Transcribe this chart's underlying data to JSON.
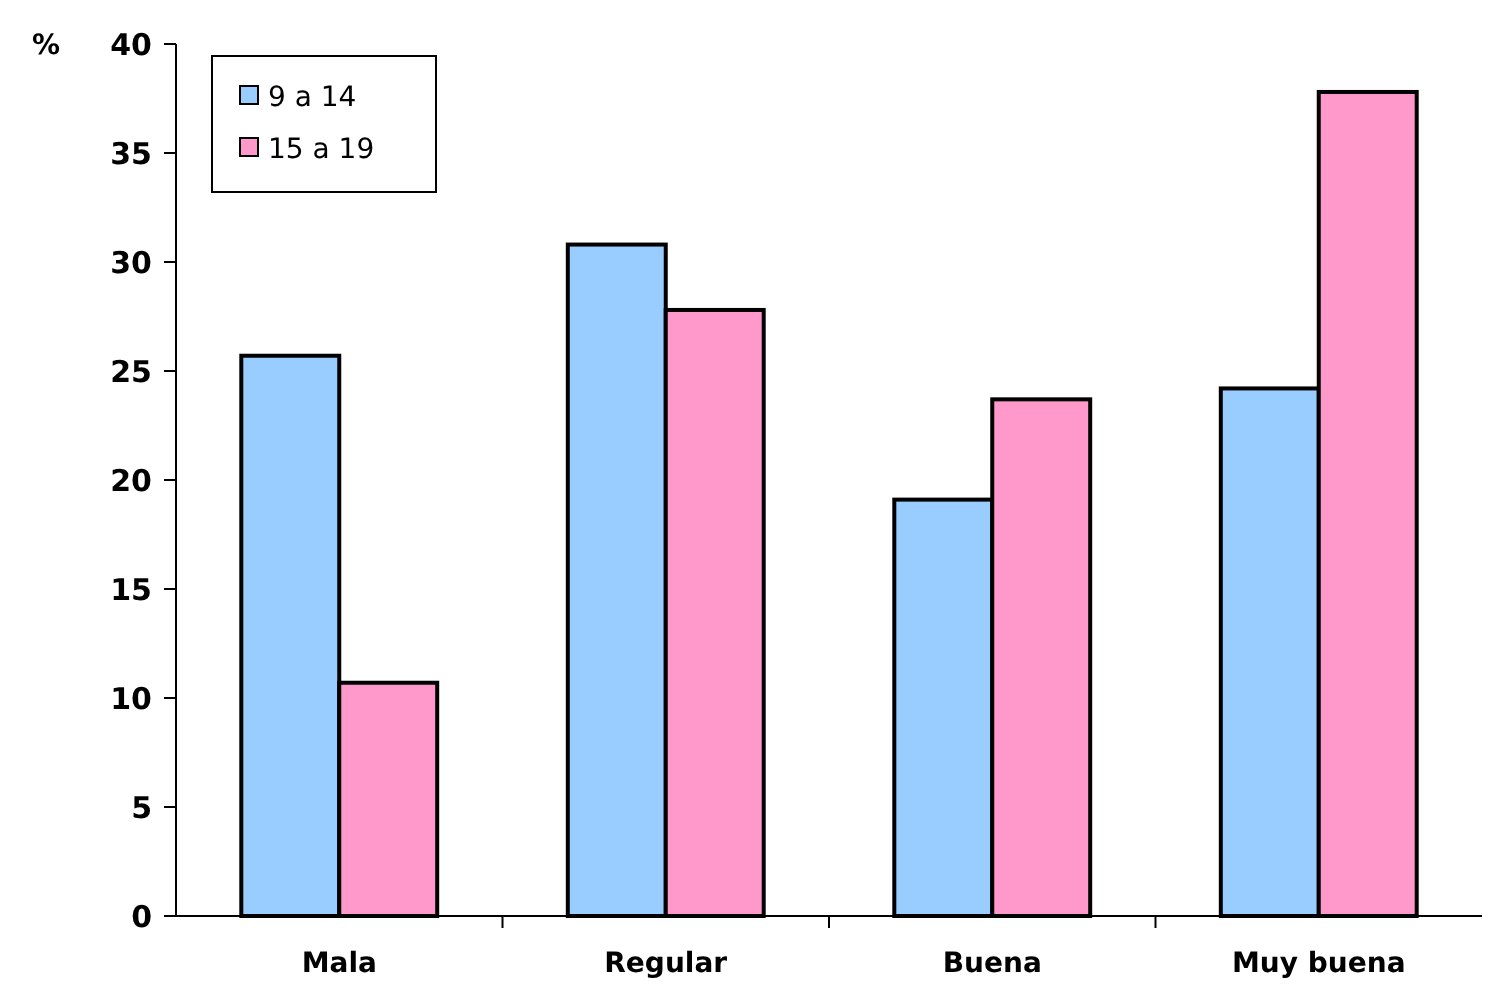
{
  "chart_data": {
    "type": "bar",
    "ylabel": "%",
    "categories": [
      "Mala",
      "Regular",
      "Buena",
      "Muy buena"
    ],
    "series": [
      {
        "name": "9 a 14",
        "color": "#99ccff",
        "values": [
          25.7,
          30.8,
          19.1,
          24.2
        ]
      },
      {
        "name": "15 a 19",
        "color": "#ff99cc",
        "values": [
          10.7,
          27.8,
          23.7,
          37.8
        ]
      }
    ],
    "ylim": [
      0,
      40
    ],
    "yticks": [
      0,
      5,
      10,
      15,
      20,
      25,
      30,
      35,
      40
    ],
    "legend": "top left"
  }
}
